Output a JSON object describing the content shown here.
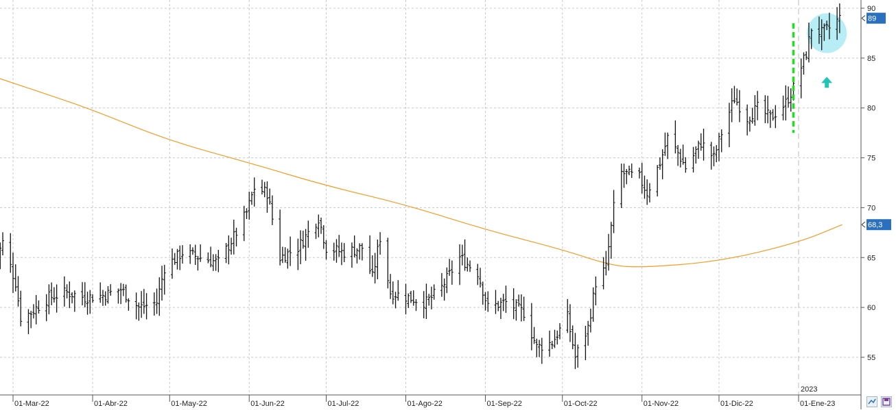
{
  "chart_data": {
    "type": "ohlc",
    "title": "",
    "xlabel": "",
    "ylabel": "",
    "ylim": [
      51.5,
      90.5
    ],
    "y_ticks": [
      55,
      60,
      65,
      70,
      75,
      80,
      85,
      90
    ],
    "y_tick_labels": [
      "55",
      "60",
      "65",
      "70",
      "75",
      "80",
      "85",
      "90"
    ],
    "x_tick_labels": [
      {
        "date": "2022-03-01",
        "label": "01-Mar-22"
      },
      {
        "date": "2022-04-01",
        "label": "01-Abr-22"
      },
      {
        "date": "2022-05-01",
        "label": "01-May-22"
      },
      {
        "date": "2022-06-01",
        "label": "01-Jun-22"
      },
      {
        "date": "2022-07-01",
        "label": "01-Jul-22"
      },
      {
        "date": "2022-08-01",
        "label": "01-Ago-22"
      },
      {
        "date": "2022-09-01",
        "label": "01-Sep-22"
      },
      {
        "date": "2022-10-01",
        "label": "01-Oct-22"
      },
      {
        "date": "2022-11-01",
        "label": "01-Nov-22"
      },
      {
        "date": "2022-12-01",
        "label": "01-Dic-22"
      },
      {
        "date": "2023-01-01",
        "label": "01-Ene-23"
      }
    ],
    "year_marker": {
      "date": "2023-01-01",
      "label": "2023"
    },
    "price_path": [
      [
        "2022-02-22",
        64.5
      ],
      [
        "2022-02-25",
        66.5
      ],
      [
        "2022-03-02",
        62.5
      ],
      [
        "2022-03-04",
        59.0
      ],
      [
        "2022-03-08",
        59.5
      ],
      [
        "2022-03-15",
        61.0
      ],
      [
        "2022-03-22",
        61.5
      ],
      [
        "2022-03-29",
        61.0
      ],
      [
        "2022-04-05",
        61.2
      ],
      [
        "2022-04-12",
        61.8
      ],
      [
        "2022-04-19",
        60.0
      ],
      [
        "2022-04-26",
        60.5
      ],
      [
        "2022-04-29",
        64.0
      ],
      [
        "2022-05-06",
        65.5
      ],
      [
        "2022-05-13",
        65.0
      ],
      [
        "2022-05-20",
        64.5
      ],
      [
        "2022-05-27",
        67.5
      ],
      [
        "2022-05-31",
        69.5
      ],
      [
        "2022-06-03",
        72.0
      ],
      [
        "2022-06-08",
        71.5
      ],
      [
        "2022-06-13",
        65.0
      ],
      [
        "2022-06-20",
        66.0
      ],
      [
        "2022-06-24",
        67.5
      ],
      [
        "2022-06-28",
        69.0
      ],
      [
        "2022-07-01",
        66.0
      ],
      [
        "2022-07-08",
        65.5
      ],
      [
        "2022-07-15",
        66.0
      ],
      [
        "2022-07-19",
        63.0
      ],
      [
        "2022-07-22",
        67.0
      ],
      [
        "2022-07-26",
        61.5
      ],
      [
        "2022-08-02",
        61.0
      ],
      [
        "2022-08-09",
        60.5
      ],
      [
        "2022-08-15",
        62.0
      ],
      [
        "2022-08-22",
        65.0
      ],
      [
        "2022-08-29",
        63.5
      ],
      [
        "2022-09-02",
        60.0
      ],
      [
        "2022-09-09",
        60.5
      ],
      [
        "2022-09-16",
        59.5
      ],
      [
        "2022-09-21",
        56.0
      ],
      [
        "2022-09-27",
        56.5
      ],
      [
        "2022-10-03",
        59.0
      ],
      [
        "2022-10-06",
        55.0
      ],
      [
        "2022-10-11",
        58.0
      ],
      [
        "2022-10-14",
        62.5
      ],
      [
        "2022-10-18",
        64.0
      ],
      [
        "2022-10-21",
        70.0
      ],
      [
        "2022-10-24",
        73.5
      ],
      [
        "2022-10-31",
        73.0
      ],
      [
        "2022-11-03",
        71.5
      ],
      [
        "2022-11-08",
        74.5
      ],
      [
        "2022-11-11",
        77.0
      ],
      [
        "2022-11-15",
        75.5
      ],
      [
        "2022-11-18",
        74.0
      ],
      [
        "2022-11-24",
        76.5
      ],
      [
        "2022-11-29",
        75.0
      ],
      [
        "2022-12-02",
        77.5
      ],
      [
        "2022-12-07",
        81.0
      ],
      [
        "2022-12-12",
        79.0
      ],
      [
        "2022-12-16",
        80.0
      ],
      [
        "2022-12-21",
        79.0
      ],
      [
        "2022-12-27",
        80.5
      ],
      [
        "2022-12-30",
        82.0
      ],
      [
        "2023-01-04",
        85.5
      ],
      [
        "2023-01-06",
        88.0
      ],
      [
        "2023-01-10",
        87.5
      ],
      [
        "2023-01-13",
        88.0
      ],
      [
        "2023-01-17",
        89.0
      ]
    ],
    "series": [
      {
        "name": "",
        "type": "moving-average",
        "color": "#f59b23",
        "points": [
          [
            "2022-02-22",
            83.1
          ],
          [
            "2022-03-15",
            81.3
          ],
          [
            "2022-04-01",
            79.8
          ],
          [
            "2022-05-01",
            76.7
          ],
          [
            "2022-06-01",
            74.5
          ],
          [
            "2022-07-01",
            72.2
          ],
          [
            "2022-08-01",
            70.3
          ],
          [
            "2022-09-01",
            67.8
          ],
          [
            "2022-10-01",
            65.8
          ],
          [
            "2022-10-20",
            64.2
          ],
          [
            "2022-11-01",
            64.0
          ],
          [
            "2022-12-01",
            64.6
          ],
          [
            "2023-01-01",
            66.5
          ],
          [
            "2023-01-18",
            68.3
          ]
        ]
      }
    ],
    "last_value_labels": [
      {
        "value": "89",
        "color": "#2b6fbf"
      },
      {
        "value": "68,3",
        "color": "#2b6fbf"
      }
    ],
    "annotations": [
      {
        "kind": "vertical-dashed-line",
        "color": "#22dd22",
        "date": "2022-12-30",
        "y_from": 77.5,
        "y_to": 88.5
      },
      {
        "kind": "circle",
        "color": "#9fe8f2",
        "date": "2023-01-12",
        "y": 87.5
      },
      {
        "kind": "up-arrow",
        "color": "#20c5b5",
        "date": "2023-01-12",
        "y": 82.5
      }
    ],
    "grid": true,
    "legend": "none"
  },
  "icons": {
    "zoom": "zoom-icon",
    "save": "save-icon"
  },
  "colors": {
    "bars": "#111111",
    "grid": "#c8c8c8",
    "ma": "#f59b23",
    "price_tag": "#2b6fbf"
  }
}
